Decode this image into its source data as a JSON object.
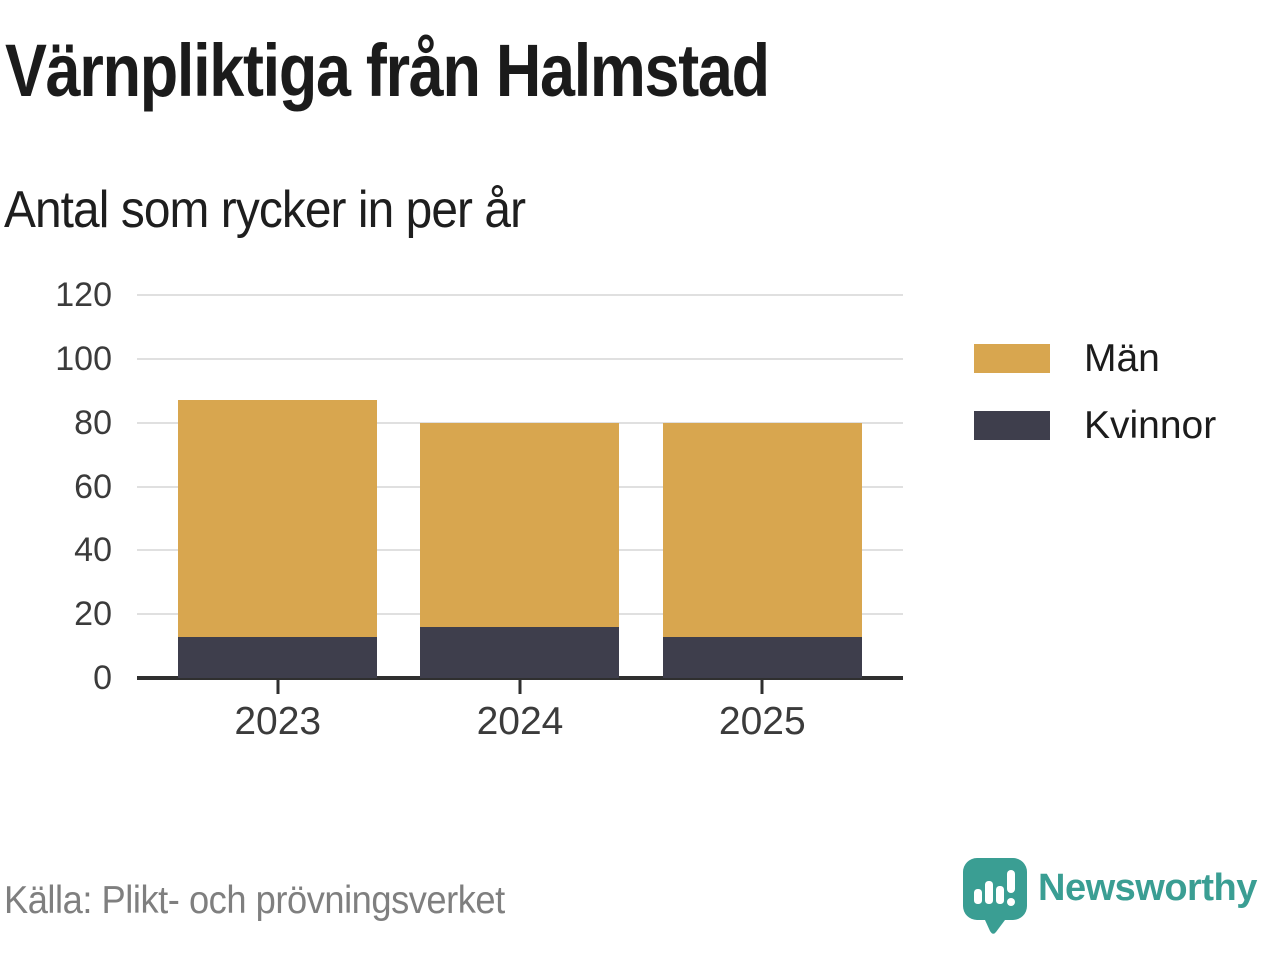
{
  "header": {
    "title": "Värnpliktiga från Halmstad",
    "subtitle": "Antal som rycker in per år"
  },
  "chart_data": {
    "type": "bar",
    "stacked": true,
    "title": "Värnpliktiga från Halmstad",
    "subtitle": "Antal som rycker in per år",
    "categories": [
      "2023",
      "2024",
      "2025"
    ],
    "series": [
      {
        "name": "Kvinnor",
        "color": "#3E3E4C",
        "values": [
          13,
          16,
          13
        ]
      },
      {
        "name": "Män",
        "color": "#D8A64F",
        "values": [
          74,
          64,
          67
        ]
      }
    ],
    "stack_totals": [
      87,
      80,
      80
    ],
    "ylim": [
      0,
      120
    ],
    "yticks": [
      0,
      20,
      40,
      60,
      80,
      100,
      120
    ],
    "grid": true,
    "xlabel": "",
    "ylabel": "",
    "legend": {
      "position": "right",
      "order": [
        "Män",
        "Kvinnor"
      ]
    }
  },
  "footer": {
    "source": "Källa: Plikt- och prövningsverket",
    "brand": "Newsworthy"
  },
  "icons": {
    "brand_icon": "newsworthy-speech-bubble-bar-chart-icon"
  },
  "colors": {
    "man_bar": "#D8A64F",
    "kvinnor_bar": "#3E3E4C",
    "brand_teal": "#3A9E93",
    "grid": "#E0E0E0",
    "axis": "#2F2F2F",
    "title_text": "#1B1B1B",
    "axis_text": "#3B3B3B",
    "source_text": "#7F7F7F"
  }
}
